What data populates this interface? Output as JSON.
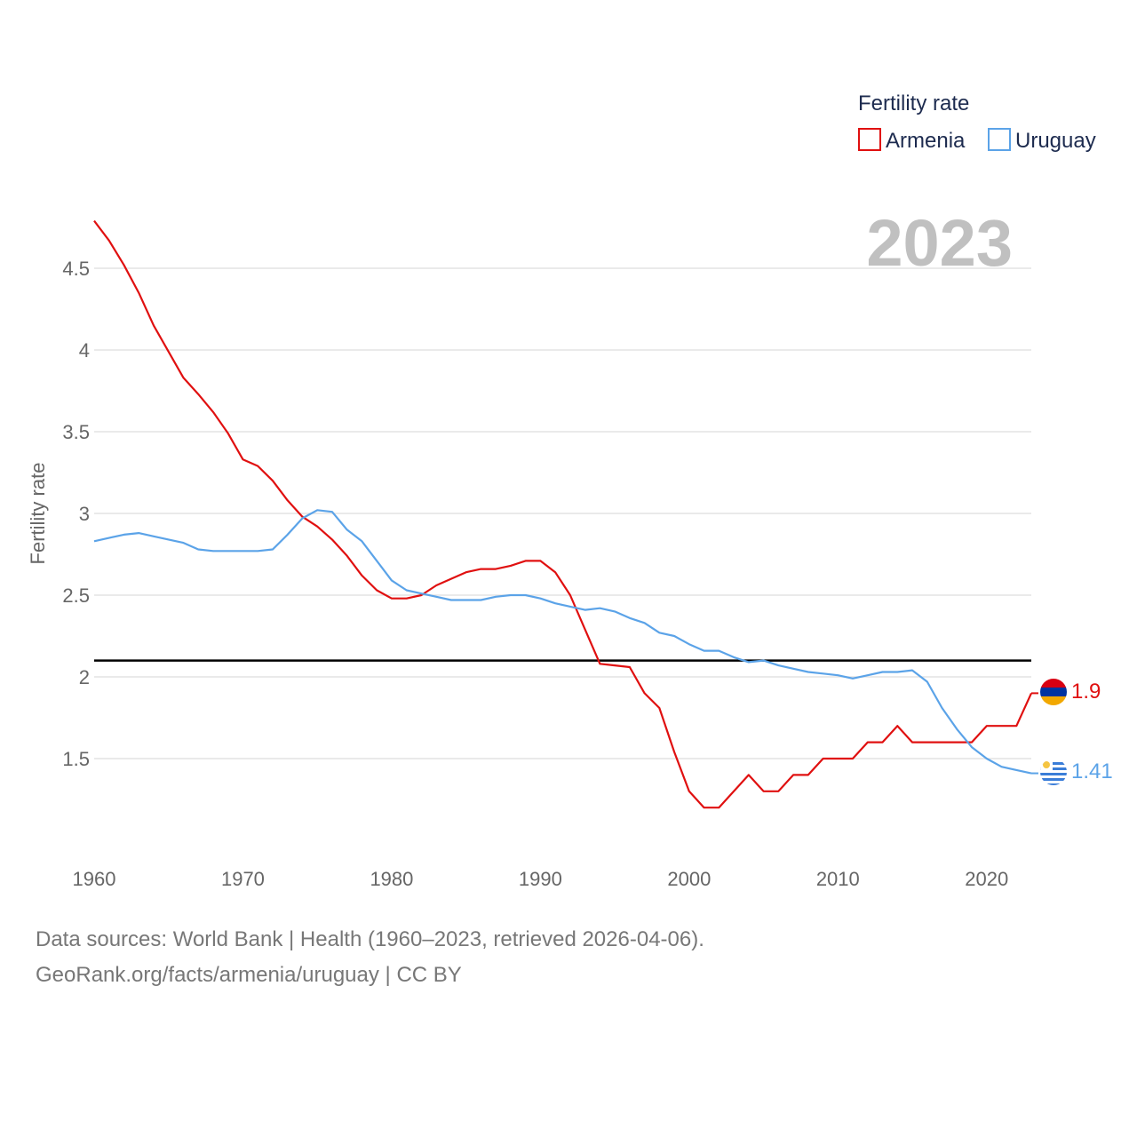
{
  "chart_data": {
    "type": "line",
    "ylabel": "Fertility rate",
    "xlabel": "",
    "xlim": [
      1960,
      2023
    ],
    "ylim": [
      1.0,
      4.8
    ],
    "x_ticks": [
      1960,
      1970,
      1980,
      1990,
      2000,
      2010,
      2020
    ],
    "y_ticks": [
      1.5,
      2,
      2.5,
      3,
      3.5,
      4,
      4.5
    ],
    "y_tick_labels": [
      "1.5",
      "2",
      "2.5",
      "3",
      "3.5",
      "4",
      "4.5"
    ],
    "reference_line": 2.1,
    "year_display": "2023",
    "legend": {
      "title": "Fertility rate",
      "position": "top-right"
    },
    "series": [
      {
        "name": "Armenia",
        "color": "#e01010",
        "end_label": "1.9",
        "x": [
          1960,
          1961,
          1962,
          1963,
          1964,
          1965,
          1966,
          1967,
          1968,
          1969,
          1970,
          1971,
          1972,
          1973,
          1974,
          1975,
          1976,
          1977,
          1978,
          1979,
          1980,
          1981,
          1982,
          1983,
          1984,
          1985,
          1986,
          1987,
          1988,
          1989,
          1990,
          1991,
          1992,
          1993,
          1994,
          1995,
          1996,
          1997,
          1998,
          1999,
          2000,
          2001,
          2002,
          2003,
          2004,
          2005,
          2006,
          2007,
          2008,
          2009,
          2010,
          2011,
          2012,
          2013,
          2014,
          2015,
          2016,
          2017,
          2018,
          2019,
          2020,
          2021,
          2022,
          2023
        ],
        "values": [
          4.79,
          4.67,
          4.52,
          4.35,
          4.15,
          3.99,
          3.83,
          3.73,
          3.62,
          3.49,
          3.33,
          3.29,
          3.2,
          3.08,
          2.98,
          2.92,
          2.84,
          2.74,
          2.62,
          2.53,
          2.48,
          2.48,
          2.5,
          2.56,
          2.6,
          2.64,
          2.66,
          2.66,
          2.68,
          2.71,
          2.71,
          2.64,
          2.5,
          2.29,
          2.08,
          2.07,
          2.06,
          1.9,
          1.81,
          1.54,
          1.3,
          1.2,
          1.2,
          1.3,
          1.4,
          1.3,
          1.3,
          1.4,
          1.4,
          1.5,
          1.5,
          1.5,
          1.6,
          1.6,
          1.7,
          1.6,
          1.6,
          1.6,
          1.6,
          1.6,
          1.7,
          1.7,
          1.7,
          1.9
        ]
      },
      {
        "name": "Uruguay",
        "color": "#5ba3e8",
        "end_label": "1.41",
        "x": [
          1960,
          1961,
          1962,
          1963,
          1964,
          1965,
          1966,
          1967,
          1968,
          1969,
          1970,
          1971,
          1972,
          1973,
          1974,
          1975,
          1976,
          1977,
          1978,
          1979,
          1980,
          1981,
          1982,
          1983,
          1984,
          1985,
          1986,
          1987,
          1988,
          1989,
          1990,
          1991,
          1992,
          1993,
          1994,
          1995,
          1996,
          1997,
          1998,
          1999,
          2000,
          2001,
          2002,
          2003,
          2004,
          2005,
          2006,
          2007,
          2008,
          2009,
          2010,
          2011,
          2012,
          2013,
          2014,
          2015,
          2016,
          2017,
          2018,
          2019,
          2020,
          2021,
          2022,
          2023
        ],
        "values": [
          2.83,
          2.85,
          2.87,
          2.88,
          2.86,
          2.84,
          2.82,
          2.78,
          2.77,
          2.77,
          2.77,
          2.77,
          2.78,
          2.87,
          2.97,
          3.02,
          3.01,
          2.9,
          2.83,
          2.71,
          2.59,
          2.53,
          2.51,
          2.49,
          2.47,
          2.47,
          2.47,
          2.49,
          2.5,
          2.5,
          2.48,
          2.45,
          2.43,
          2.41,
          2.42,
          2.4,
          2.36,
          2.33,
          2.27,
          2.25,
          2.2,
          2.16,
          2.16,
          2.12,
          2.09,
          2.1,
          2.07,
          2.05,
          2.03,
          2.02,
          2.01,
          1.99,
          2.01,
          2.03,
          2.03,
          2.04,
          1.97,
          1.81,
          1.68,
          1.57,
          1.5,
          1.45,
          1.43,
          1.41
        ]
      }
    ]
  },
  "footer": {
    "line1": "Data sources: World Bank | Health (1960–2023, retrieved 2026-04-06).",
    "line2": "GeoRank.org/facts/armenia/uruguay | CC BY"
  }
}
